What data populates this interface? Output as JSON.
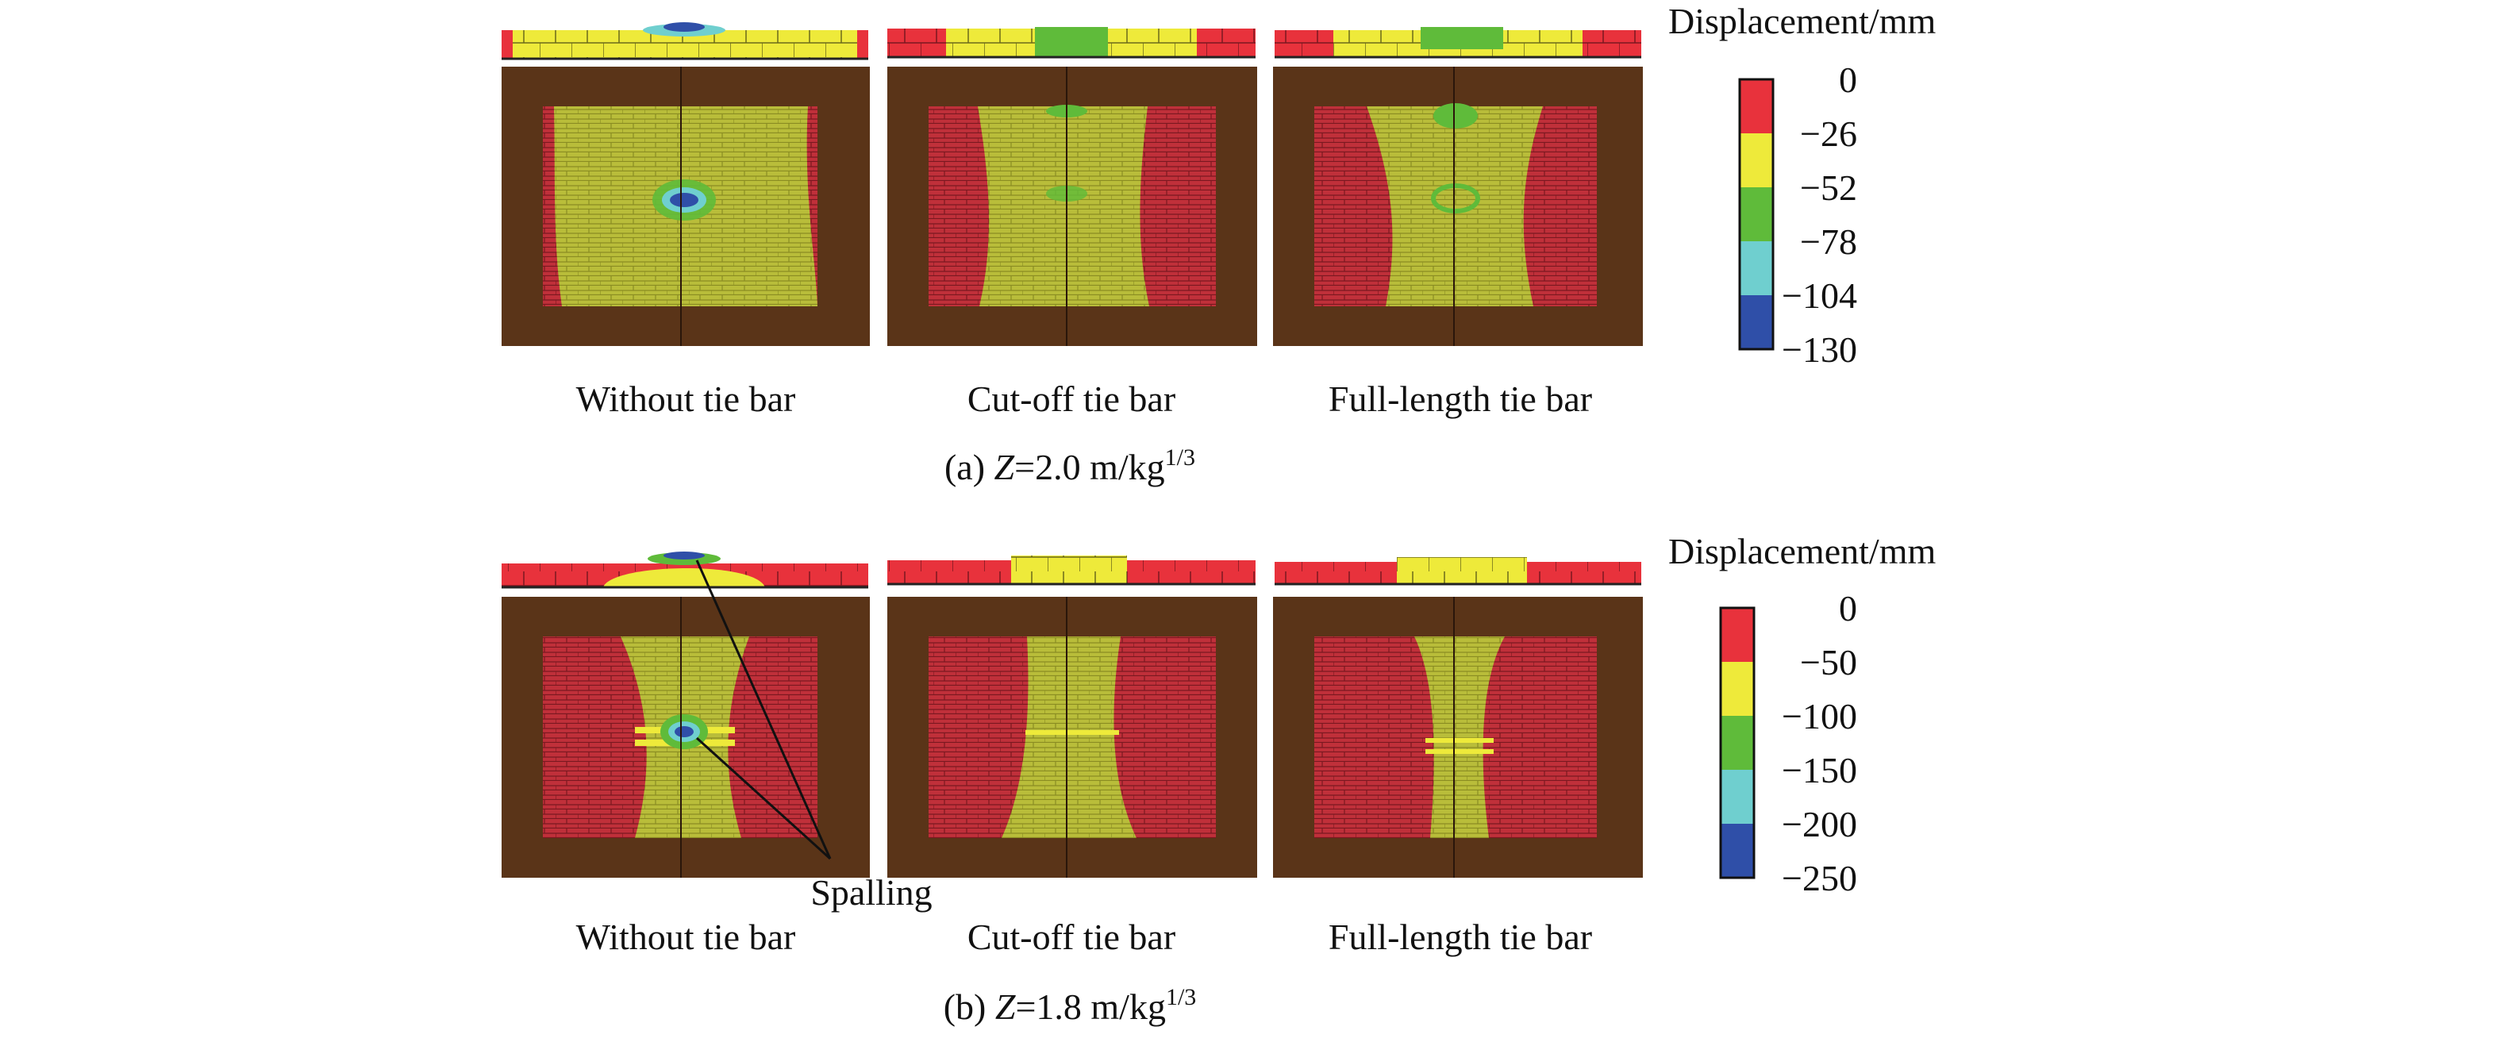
{
  "colors": {
    "red": "#e8323c",
    "yellow": "#eeea3a",
    "green": "#5fbb3a",
    "cyan": "#6fcfcf",
    "blue": "#2f4fa8",
    "frame": "#5a3418",
    "brick_red": "#c0303a",
    "brick_yellow": "#b9bd3a"
  },
  "panels": [
    {
      "caption_prefix": "(a) ",
      "caption_var": "Z",
      "caption_eq": "=2.0 m/kg",
      "caption_exp": "1/3",
      "legend": {
        "title": "Displacement/mm",
        "values": [
          "0",
          "−26",
          "−52",
          "−78",
          "−104",
          "−130"
        ]
      },
      "cases": [
        {
          "label": "Without tie bar"
        },
        {
          "label": "Cut-off tie bar"
        },
        {
          "label": "Full-length tie bar"
        }
      ]
    },
    {
      "caption_prefix": "(b) ",
      "caption_var": "Z",
      "caption_eq": "=1.8 m/kg",
      "caption_exp": "1/3",
      "legend": {
        "title": "Displacement/mm",
        "values": [
          "0",
          "−50",
          "−100",
          "−150",
          "−200",
          "−250"
        ]
      },
      "cases": [
        {
          "label": "Without tie bar"
        },
        {
          "label": "Cut-off tie bar"
        },
        {
          "label": "Full-length tie bar"
        }
      ],
      "annotation": "Spalling"
    }
  ]
}
